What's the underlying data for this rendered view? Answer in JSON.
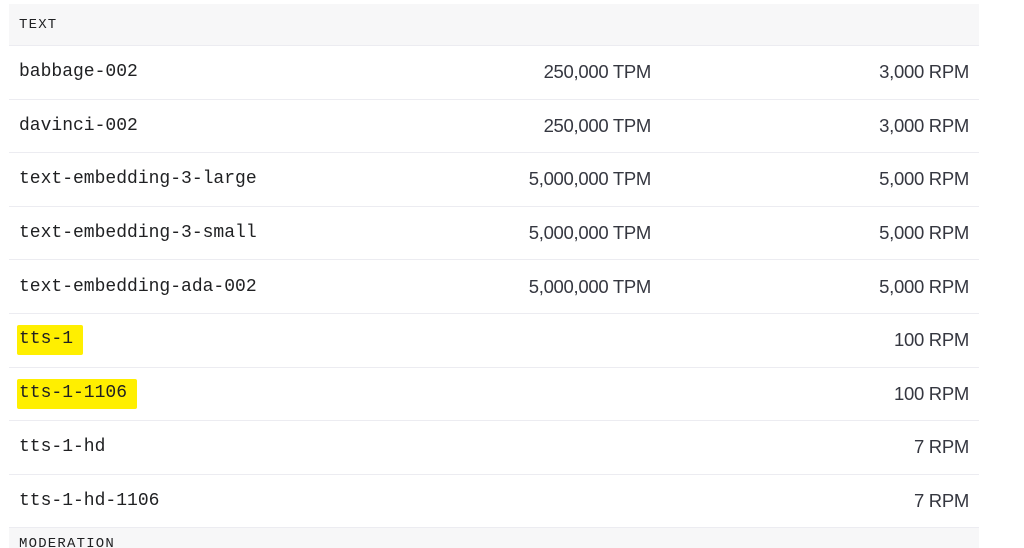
{
  "section": {
    "label": "TEXT"
  },
  "rows": [
    {
      "model": "babbage-002",
      "tpm": "250,000 TPM",
      "rpm": "3,000 RPM",
      "highlighted": false
    },
    {
      "model": "davinci-002",
      "tpm": "250,000 TPM",
      "rpm": "3,000 RPM",
      "highlighted": false
    },
    {
      "model": "text-embedding-3-large",
      "tpm": "5,000,000 TPM",
      "rpm": "5,000 RPM",
      "highlighted": false
    },
    {
      "model": "text-embedding-3-small",
      "tpm": "5,000,000 TPM",
      "rpm": "5,000 RPM",
      "highlighted": false
    },
    {
      "model": "text-embedding-ada-002",
      "tpm": "5,000,000 TPM",
      "rpm": "5,000 RPM",
      "highlighted": false
    },
    {
      "model": "tts-1",
      "tpm": "",
      "rpm": "100 RPM",
      "highlighted": true
    },
    {
      "model": "tts-1-1106",
      "tpm": "",
      "rpm": "100 RPM",
      "highlighted": true
    },
    {
      "model": "tts-1-hd",
      "tpm": "",
      "rpm": "7 RPM",
      "highlighted": false
    },
    {
      "model": "tts-1-hd-1106",
      "tpm": "",
      "rpm": "7 RPM",
      "highlighted": false
    }
  ],
  "next_section": {
    "label": "MODERATION"
  },
  "colors": {
    "highlight": "#ffef00",
    "header_bg": "#f7f7f8",
    "divider": "#ececf1"
  }
}
